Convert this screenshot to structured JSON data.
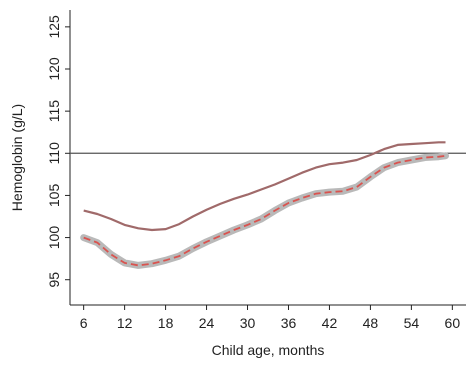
{
  "chart_data": {
    "type": "line",
    "title": "",
    "xlabel": "Child age, months",
    "ylabel": "Hemoglobin (g/L)",
    "xlim": [
      4,
      62
    ],
    "ylim": [
      92,
      127
    ],
    "xticks": [
      6,
      12,
      18,
      24,
      30,
      36,
      42,
      48,
      54,
      60
    ],
    "yticks": [
      95,
      100,
      105,
      110,
      115,
      120,
      125
    ],
    "reference_line": {
      "y": 110,
      "color": "#555555"
    },
    "grid": false,
    "legend": "none",
    "series": [
      {
        "color": "#a06a6a",
        "x": [
          6,
          8,
          10,
          12,
          14,
          16,
          18,
          20,
          22,
          24,
          26,
          28,
          30,
          32,
          34,
          36,
          38,
          40,
          42,
          44,
          46,
          48,
          50,
          52,
          54,
          56,
          58,
          59
        ],
        "y": [
          103.2,
          102.8,
          102.2,
          101.5,
          101.1,
          100.9,
          101.0,
          101.6,
          102.5,
          103.3,
          104.0,
          104.6,
          105.1,
          105.7,
          106.3,
          107.0,
          107.7,
          108.3,
          108.7,
          108.9,
          109.2,
          109.8,
          110.5,
          111.0,
          111.1,
          111.2,
          111.3,
          111.3
        ]
      },
      {
        "color": "#d9534f",
        "dashed": true,
        "band_color": "#b9b9b9",
        "x": [
          6,
          8,
          10,
          12,
          14,
          16,
          18,
          20,
          22,
          24,
          26,
          28,
          30,
          32,
          34,
          36,
          38,
          40,
          42,
          44,
          46,
          48,
          50,
          52,
          54,
          56,
          58,
          59
        ],
        "y": [
          100.0,
          99.4,
          98.0,
          97.0,
          96.7,
          96.9,
          97.3,
          97.8,
          98.7,
          99.5,
          100.2,
          100.9,
          101.5,
          102.2,
          103.2,
          104.1,
          104.7,
          105.2,
          105.4,
          105.5,
          106.0,
          107.2,
          108.3,
          108.9,
          109.2,
          109.5,
          109.6,
          109.7
        ]
      }
    ]
  }
}
